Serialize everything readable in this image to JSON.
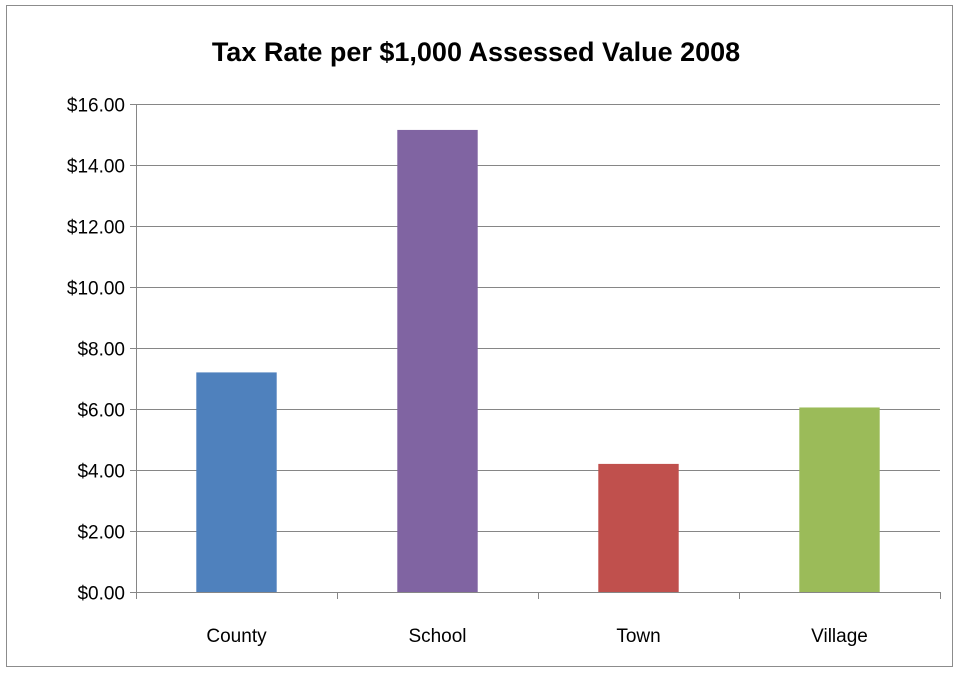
{
  "chart_data": {
    "type": "bar",
    "title": "Tax Rate per $1,000 Assessed Value 2008",
    "xlabel": "",
    "ylabel": "",
    "categories": [
      "County",
      "School",
      "Town",
      "Village"
    ],
    "values": [
      7.2,
      15.15,
      4.2,
      6.05
    ],
    "colors": [
      "#4f81bd",
      "#8064a2",
      "#c0504d",
      "#9bbb59"
    ],
    "ylim": [
      0,
      16
    ],
    "y_ticks": [
      0,
      2,
      4,
      6,
      8,
      10,
      12,
      14,
      16
    ],
    "y_tick_labels": [
      "$0.00",
      "$2.00",
      "$4.00",
      "$6.00",
      "$8.00",
      "$10.00",
      "$12.00",
      "$14.00",
      "$16.00"
    ],
    "grid": true,
    "legend": "none"
  }
}
